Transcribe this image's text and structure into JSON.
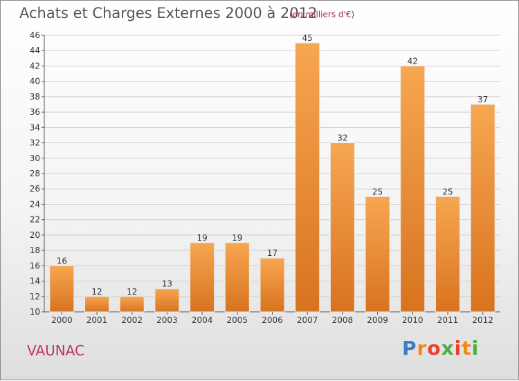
{
  "header": {
    "title": "Achats et Charges Externes 2000 à 2012",
    "subtitle": "(en milliers d'€)"
  },
  "footer": {
    "commune": "VAUNAC",
    "brand": "Proxiti"
  },
  "colors": {
    "bar_light": "#f7a651",
    "bar_dark": "#d8731f",
    "grid": "#cfcfcf"
  },
  "chart_data": {
    "type": "bar",
    "title": "Achats et Charges Externes 2000 à 2012",
    "subtitle": "(en milliers d'€)",
    "categories": [
      "2000",
      "2001",
      "2002",
      "2003",
      "2004",
      "2005",
      "2006",
      "2007",
      "2008",
      "2009",
      "2010",
      "2011",
      "2012"
    ],
    "values": [
      16,
      12,
      12,
      13,
      19,
      19,
      17,
      45,
      32,
      25,
      42,
      25,
      37
    ],
    "ylim": [
      10,
      46
    ],
    "yticks": [
      10,
      12,
      14,
      16,
      18,
      20,
      22,
      24,
      26,
      28,
      30,
      32,
      34,
      36,
      38,
      40,
      42,
      44,
      46
    ],
    "grid": true,
    "xlabel": "",
    "ylabel": ""
  }
}
